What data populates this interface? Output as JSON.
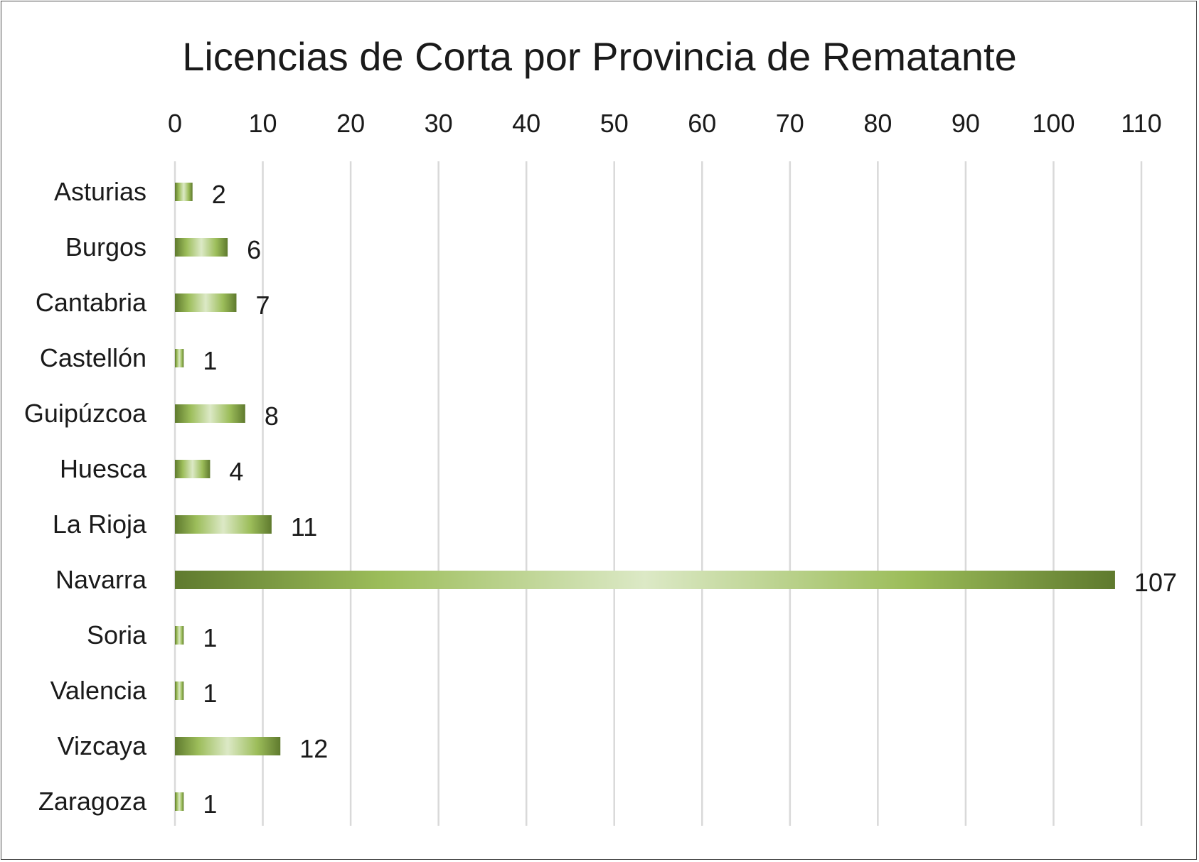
{
  "chart_data": {
    "type": "bar",
    "orientation": "horizontal",
    "title": "Licencias de Corta por Provincia de Rematante",
    "xlabel": "",
    "ylabel": "",
    "xlim": [
      0,
      110
    ],
    "x_ticks": [
      "0",
      "10",
      "20",
      "30",
      "40",
      "50",
      "60",
      "70",
      "80",
      "90",
      "100",
      "110"
    ],
    "x_axis_position": "top",
    "grid": true,
    "legend": "none",
    "categories": [
      "Asturias",
      "Burgos",
      "Cantabria",
      "Castellón",
      "Guipúzcoa",
      "Huesca",
      "La Rioja",
      "Navarra",
      "Soria",
      "Valencia",
      "Vizcaya",
      "Zaragoza"
    ],
    "values": [
      2,
      6,
      7,
      1,
      8,
      4,
      11,
      107,
      1,
      1,
      12,
      1
    ],
    "data_labels": [
      "2",
      "6",
      "7",
      "1",
      "8",
      "4",
      "11",
      "107",
      "1",
      "1",
      "12",
      "1"
    ],
    "colors": {
      "bar_dark": "#5f7a2e",
      "bar_mid": "#9cbd5a",
      "bar_light": "#dce9c6",
      "grid": "#d9d9d9"
    }
  }
}
